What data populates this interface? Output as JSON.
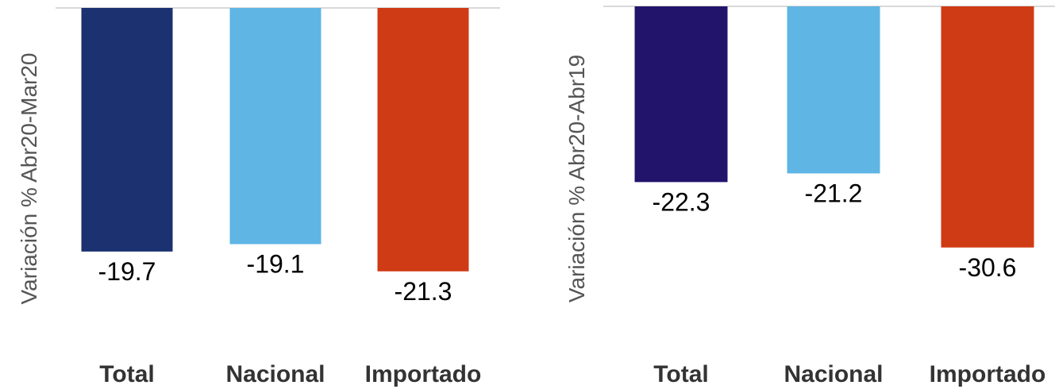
{
  "chart_data": [
    {
      "type": "bar",
      "categories": [
        "Total",
        "Nacional",
        "Importado"
      ],
      "values": [
        -19.7,
        -19.1,
        -21.3
      ],
      "value_labels": [
        "-19.7",
        "-19.1",
        "-21.3"
      ],
      "ylabel": "Variación % Abr20-Mar20",
      "ylim": [
        -26,
        0
      ],
      "colors": [
        "#1b3170",
        "#5fb5e4",
        "#cf3b15"
      ],
      "grid": false
    },
    {
      "type": "bar",
      "categories": [
        "Total",
        "Nacional",
        "Importado"
      ],
      "values": [
        -22.3,
        -21.2,
        -30.6
      ],
      "value_labels": [
        "-22.3",
        "-21.2",
        "-30.6"
      ],
      "ylabel": "Variación % Abr20-Abr19",
      "ylim": [
        -41,
        0
      ],
      "colors": [
        "#22146b",
        "#5fb5e4",
        "#cf3b15"
      ],
      "grid": false
    }
  ]
}
